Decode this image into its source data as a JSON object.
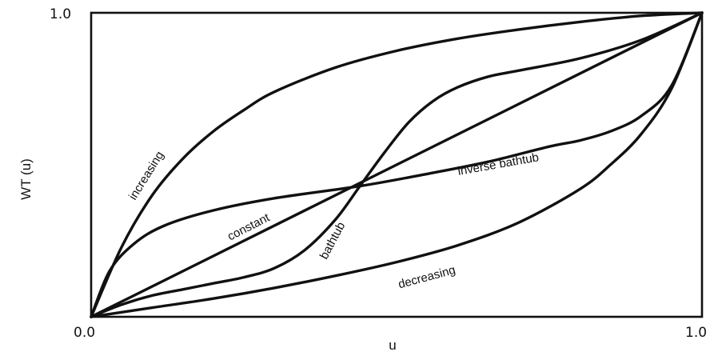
{
  "chart_data": {
    "type": "line",
    "title": "",
    "xlabel": "u",
    "ylabel": "WT (u)",
    "xlim": [
      0,
      1
    ],
    "ylim": [
      0,
      1
    ],
    "grid": false,
    "xticks": [
      "0.0",
      "1.0"
    ],
    "yticks": [
      "1.0"
    ],
    "series": [
      {
        "name": "increasing",
        "x": [
          0,
          0.05,
          0.1,
          0.15,
          0.2,
          0.25,
          0.3,
          0.4,
          0.5,
          0.6,
          0.7,
          0.8,
          0.9,
          1.0
        ],
        "y": [
          0,
          0.23,
          0.4,
          0.52,
          0.61,
          0.68,
          0.74,
          0.82,
          0.875,
          0.915,
          0.945,
          0.97,
          0.99,
          1.0
        ]
      },
      {
        "name": "constant",
        "x": [
          0,
          1
        ],
        "y": [
          0,
          1
        ]
      },
      {
        "name": "decreasing",
        "x": [
          0,
          0.1,
          0.2,
          0.3,
          0.4,
          0.5,
          0.6,
          0.7,
          0.8,
          0.85,
          0.9,
          0.95,
          1.0
        ],
        "y": [
          0,
          0.03,
          0.06,
          0.095,
          0.135,
          0.18,
          0.235,
          0.31,
          0.42,
          0.5,
          0.6,
          0.75,
          1.0
        ]
      },
      {
        "name": "bathtub",
        "x": [
          0,
          0.05,
          0.1,
          0.15,
          0.2,
          0.25,
          0.3,
          0.35,
          0.4,
          0.44,
          0.48,
          0.52,
          0.56,
          0.6,
          0.65,
          0.7,
          0.8,
          0.9,
          1.0
        ],
        "y": [
          0,
          0.04,
          0.07,
          0.09,
          0.11,
          0.13,
          0.16,
          0.22,
          0.32,
          0.43,
          0.54,
          0.64,
          0.71,
          0.755,
          0.79,
          0.81,
          0.85,
          0.91,
          1.0
        ]
      },
      {
        "name": "inverse bathtub",
        "x": [
          0,
          0.03,
          0.07,
          0.12,
          0.2,
          0.3,
          0.44,
          0.55,
          0.65,
          0.75,
          0.8,
          0.85,
          0.9,
          0.95,
          1.0
        ],
        "y": [
          0,
          0.15,
          0.24,
          0.3,
          0.35,
          0.39,
          0.43,
          0.47,
          0.51,
          0.56,
          0.58,
          0.61,
          0.66,
          0.76,
          1.0
        ]
      }
    ],
    "annotations": [
      {
        "text": "increasing",
        "series": "increasing"
      },
      {
        "text": "constant",
        "series": "constant"
      },
      {
        "text": "bathtub",
        "series": "bathtub"
      },
      {
        "text": "inverse bathtub",
        "series": "inverse bathtub"
      },
      {
        "text": "decreasing",
        "series": "decreasing"
      }
    ]
  }
}
